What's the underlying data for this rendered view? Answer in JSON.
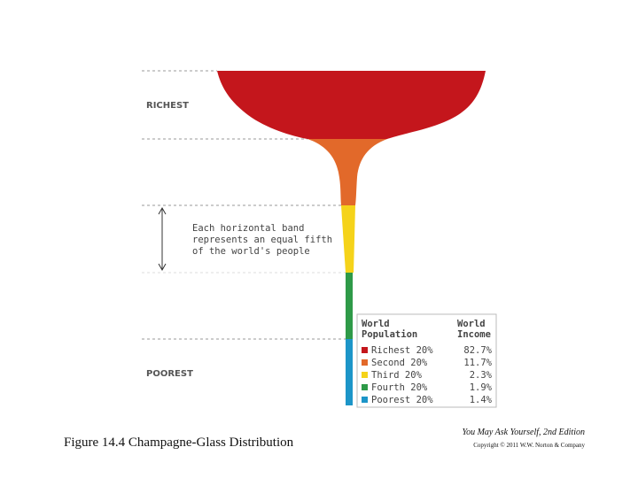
{
  "labels": {
    "top": "RICHEST",
    "bottom": "POOREST"
  },
  "note": [
    "Each horizontal band",
    "represents an equal fifth",
    "of the world's people"
  ],
  "table": {
    "headers": [
      [
        "World",
        "Population"
      ],
      [
        "World",
        "Income"
      ]
    ],
    "rows": [
      {
        "population": "Richest 20%",
        "income": "82.7%",
        "color": "#c4161c"
      },
      {
        "population": "Second 20%",
        "income": "11.7%",
        "color": "#e2692a"
      },
      {
        "population": "Third 20%",
        "income": "2.3%",
        "color": "#f5d31a"
      },
      {
        "population": "Fourth 20%",
        "income": "1.9%",
        "color": "#2e9a48"
      },
      {
        "population": "Poorest 20%",
        "income": "1.4%",
        "color": "#1c95c8"
      }
    ]
  },
  "caption": "Figure 14.4 Champagne-Glass Distribution",
  "source": {
    "book": "You May Ask Yourself, 2nd Edition",
    "copyright": "Copyright © 2011 W.W. Norton & Company"
  }
}
